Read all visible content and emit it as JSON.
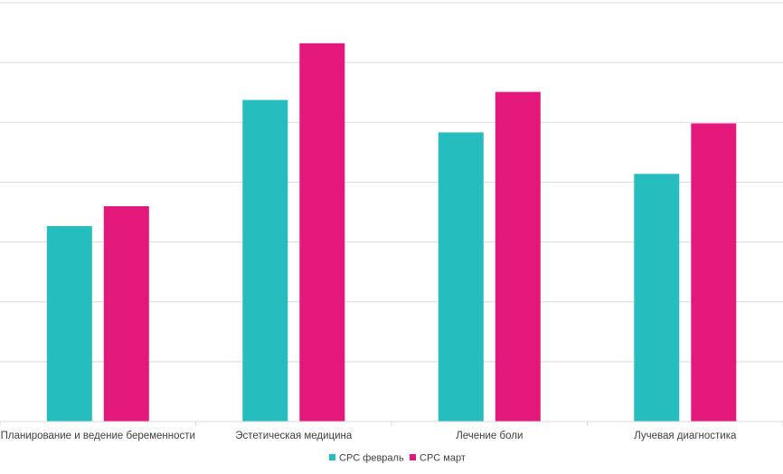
{
  "chart_data": {
    "type": "bar",
    "categories": [
      "Планирование и ведение беременности",
      "Эстетическая медицина",
      "Лечение боли",
      "Лучевая диагностика"
    ],
    "series": [
      {
        "name": "CPC февраль",
        "color": "#26bdbe",
        "values": [
          21.7,
          35.7,
          32.1,
          27.5
        ]
      },
      {
        "name": "CPC март",
        "color": "#e3187a",
        "values": [
          23.9,
          42.0,
          36.6,
          33.1
        ]
      }
    ],
    "ylim": [
      0,
      46.5
    ],
    "grid": true,
    "legend_position": "bottom"
  }
}
